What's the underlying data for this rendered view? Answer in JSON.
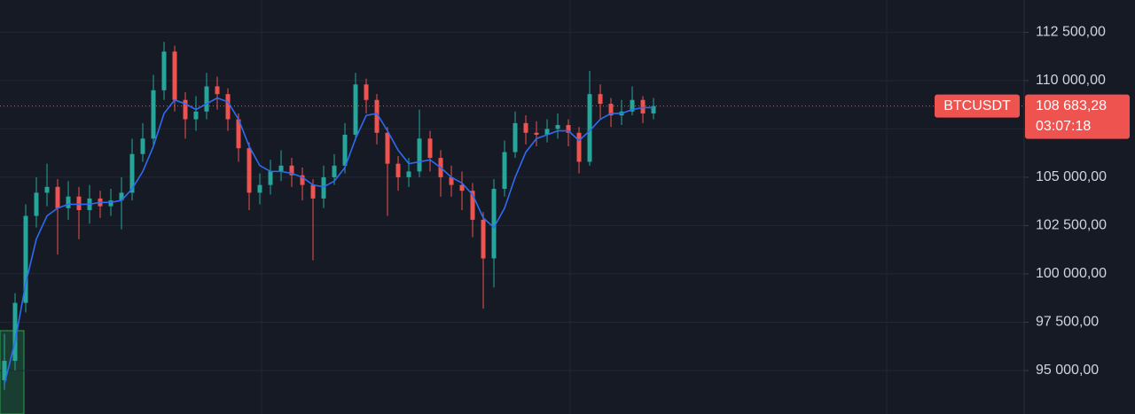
{
  "chart_data": {
    "type": "candlestick",
    "symbol": "BTCUSDT",
    "last_price": {
      "value": 108683.28,
      "label": "108 683,28"
    },
    "countdown": "03:07:18",
    "up_color": "#26a69a",
    "down_color": "#ef5350",
    "ma_color": "#2f6bf0",
    "grid": true,
    "ylim": [
      92750,
      114170
    ],
    "yticks": [
      {
        "value": 112500,
        "label": "112 500,00"
      },
      {
        "value": 110000,
        "label": "110 000,00"
      },
      {
        "value": 107500,
        "label": ""
      },
      {
        "value": 105000,
        "label": "105 000,00"
      },
      {
        "value": 102500,
        "label": "102 500,00"
      },
      {
        "value": 100000,
        "label": "100 000,00"
      },
      {
        "value": 97500,
        "label": "97 500,00"
      },
      {
        "value": 95000,
        "label": "95 000,00"
      }
    ],
    "open": [
      94500,
      95500,
      98500,
      103000,
      104200,
      104500,
      103400,
      104000,
      103300,
      103900,
      103500,
      103800,
      104200,
      106200,
      107000,
      109500,
      111500,
      109000,
      108000,
      108400,
      109700,
      109300,
      108000,
      106500,
      104200,
      104600,
      105300,
      105600,
      105100,
      104600,
      103900,
      105000,
      105600,
      107200,
      109800,
      109000,
      107300,
      105700,
      105000,
      105300,
      107000,
      106000,
      105000,
      104600,
      104300,
      102800,
      100800,
      104400,
      106300,
      107800,
      107300,
      107200,
      107500,
      107700,
      107300,
      105800,
      109300,
      108800,
      108200,
      108400,
      109000,
      108300
    ],
    "high": [
      96900,
      99000,
      103600,
      105000,
      105700,
      104900,
      104800,
      104500,
      104600,
      104300,
      104400,
      105000,
      107000,
      107800,
      110300,
      112000,
      111800,
      109400,
      109200,
      110400,
      110200,
      109600,
      108300,
      106800,
      105200,
      105900,
      106400,
      106000,
      105500,
      104900,
      105600,
      106200,
      107800,
      110400,
      110100,
      109300,
      107600,
      106100,
      106000,
      108500,
      107400,
      106400,
      105600,
      105300,
      104700,
      103200,
      104900,
      106900,
      108400,
      108200,
      107900,
      108000,
      108300,
      108000,
      107600,
      110500,
      109800,
      109100,
      109000,
      109700,
      109200,
      109100
    ],
    "low": [
      94000,
      95000,
      98000,
      102400,
      103500,
      101000,
      102800,
      101800,
      102600,
      102900,
      103000,
      102300,
      103800,
      105800,
      106600,
      109000,
      108400,
      107000,
      107400,
      108000,
      108500,
      107400,
      105800,
      103300,
      103600,
      104100,
      104800,
      104500,
      103800,
      100700,
      103400,
      104600,
      105200,
      106900,
      108300,
      106700,
      103000,
      104300,
      104500,
      105000,
      105300,
      104000,
      104000,
      103300,
      101900,
      98200,
      99300,
      104000,
      106000,
      106700,
      106600,
      106800,
      107000,
      106600,
      105200,
      105600,
      108000,
      107600,
      107700,
      108200,
      107800,
      108000
    ],
    "close": [
      95500,
      98500,
      103000,
      104200,
      104500,
      103400,
      104000,
      103300,
      103900,
      103500,
      103800,
      104200,
      106200,
      107000,
      109500,
      111500,
      109000,
      108000,
      108400,
      109700,
      109300,
      108000,
      106500,
      104200,
      104600,
      105300,
      105600,
      105100,
      104600,
      103900,
      105000,
      105600,
      107200,
      109800,
      109000,
      107300,
      105700,
      105000,
      105300,
      107000,
      106000,
      105000,
      104600,
      104300,
      102800,
      100800,
      104400,
      106300,
      107800,
      107300,
      107200,
      107500,
      107700,
      107300,
      105800,
      109300,
      108800,
      108200,
      108400,
      109000,
      108300,
      108683.28
    ],
    "ma": [
      94300,
      96500,
      99500,
      101800,
      103000,
      103400,
      103600,
      103600,
      103600,
      103700,
      103700,
      103800,
      104400,
      105300,
      106600,
      108300,
      109000,
      108800,
      108500,
      108800,
      109100,
      108900,
      108000,
      106600,
      105600,
      105300,
      105300,
      105200,
      105000,
      104600,
      104500,
      104800,
      105500,
      107000,
      108200,
      108300,
      107400,
      106400,
      105700,
      105800,
      105900,
      105500,
      105000,
      104700,
      104100,
      102900,
      102400,
      103400,
      105000,
      106300,
      107000,
      107200,
      107400,
      107400,
      106900,
      107400,
      108000,
      108300,
      108300,
      108500,
      108600,
      108600
    ]
  }
}
